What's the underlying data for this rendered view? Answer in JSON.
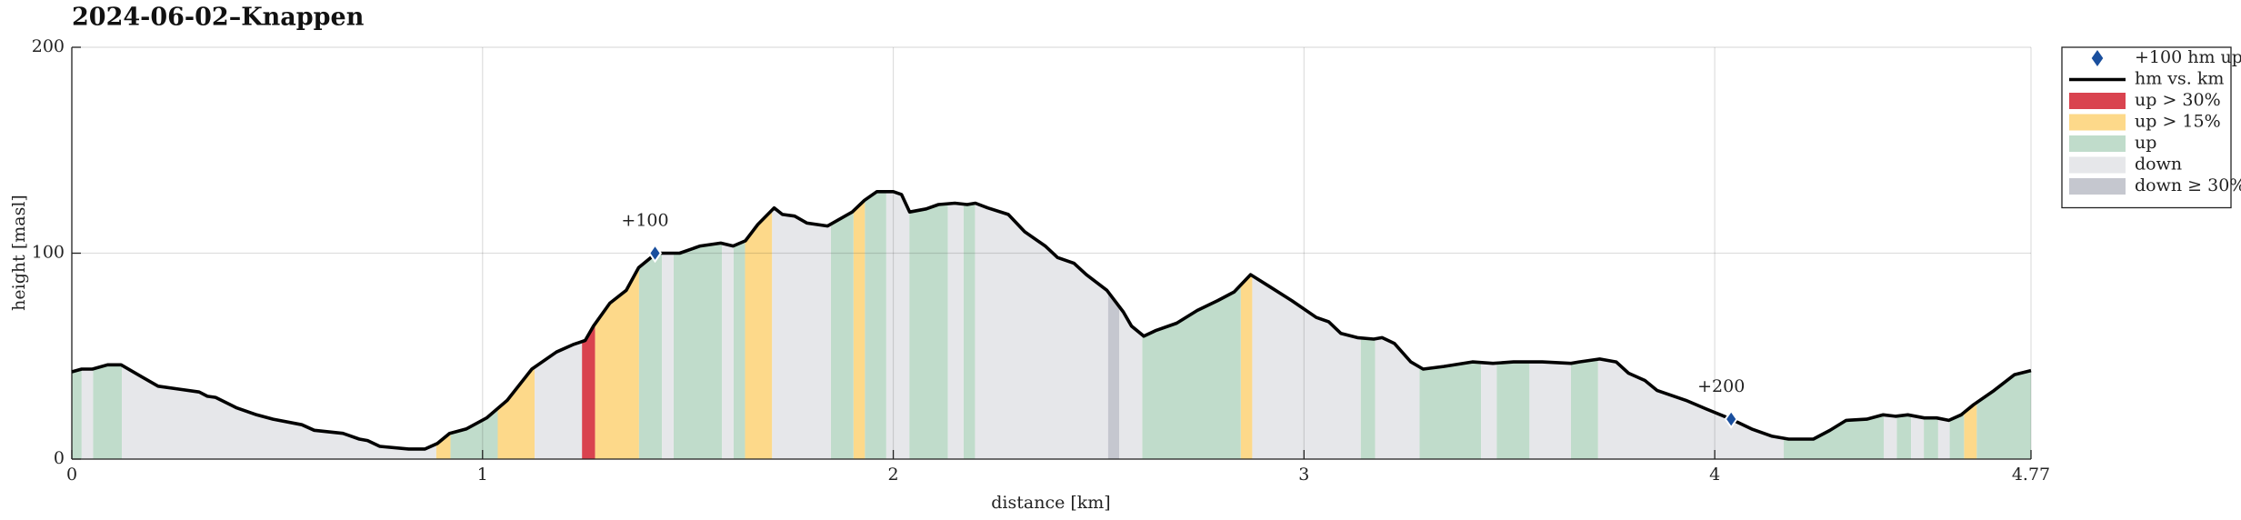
{
  "chart_data": {
    "type": "elevation-profile",
    "title": "2024-06-02–Knappen",
    "xlabel": "distance [km]",
    "ylabel": "height [masl]",
    "xlim": [
      0,
      4.77
    ],
    "ylim": [
      0,
      200
    ],
    "xticks": [
      0,
      1,
      2,
      3,
      4,
      4.77
    ],
    "yticks": [
      0,
      100,
      200
    ],
    "grid": true,
    "legend": "outside-right",
    "series": [
      {
        "name": "+100 hm up",
        "color": "#1a4f9e",
        "marker": "diamond",
        "x": [
          1.42,
          4.04
        ],
        "values": [
          100,
          19.4
        ],
        "labels": [
          "+100",
          "+200"
        ]
      },
      {
        "name": "hm vs. km",
        "color": "#000000",
        "x": [
          0,
          0.024,
          0.05,
          0.087,
          0.12,
          0.17,
          0.21,
          0.26,
          0.31,
          0.33,
          0.35,
          0.4,
          0.45,
          0.49,
          0.56,
          0.59,
          0.66,
          0.7,
          0.72,
          0.75,
          0.82,
          0.86,
          0.89,
          0.92,
          0.96,
          1.01,
          1.06,
          1.12,
          1.18,
          1.22,
          1.25,
          1.27,
          1.31,
          1.35,
          1.38,
          1.41,
          1.42,
          1.45,
          1.48,
          1.53,
          1.58,
          1.61,
          1.64,
          1.67,
          1.71,
          1.73,
          1.76,
          1.79,
          1.84,
          1.9,
          1.93,
          1.96,
          2.0,
          2.02,
          2.04,
          2.08,
          2.11,
          2.15,
          2.18,
          2.2,
          2.23,
          2.28,
          2.32,
          2.37,
          2.4,
          2.44,
          2.47,
          2.52,
          2.56,
          2.58,
          2.61,
          2.64,
          2.69,
          2.74,
          2.79,
          2.83,
          2.87,
          2.92,
          2.97,
          3.03,
          3.06,
          3.09,
          3.13,
          3.17,
          3.19,
          3.22,
          3.26,
          3.29,
          3.34,
          3.41,
          3.46,
          3.51,
          3.58,
          3.65,
          3.67,
          3.72,
          3.76,
          3.79,
          3.83,
          3.86,
          3.93,
          3.98,
          4.04,
          4.09,
          4.14,
          4.18,
          4.24,
          4.28,
          4.32,
          4.37,
          4.41,
          4.44,
          4.47,
          4.51,
          4.54,
          4.57,
          4.6,
          4.63,
          4.68,
          4.73,
          4.77
        ],
        "values": [
          42.4,
          43.7,
          43.7,
          45.8,
          45.8,
          40,
          35.4,
          34,
          32.6,
          30.5,
          30,
          25,
          21.5,
          19.4,
          16.7,
          14,
          12.5,
          9.7,
          9,
          6.2,
          4.9,
          4.9,
          7.6,
          12.5,
          14.6,
          20,
          28.5,
          43.7,
          52,
          55.6,
          57.6,
          64.6,
          75.7,
          82,
          93,
          97.9,
          100,
          100,
          100,
          103.5,
          104.9,
          103.5,
          106,
          113.9,
          122,
          118.8,
          118,
          114.6,
          113.2,
          120,
          125.7,
          129.9,
          129.9,
          128.5,
          120,
          121.5,
          123.6,
          124.3,
          123.6,
          124.3,
          122,
          118.8,
          110.4,
          103.5,
          97.9,
          95.1,
          89.6,
          82,
          71.5,
          64.6,
          59.7,
          62.5,
          66,
          72.2,
          77,
          81.2,
          89.6,
          83.3,
          77,
          68.8,
          66.7,
          61,
          59,
          58.3,
          59,
          56.2,
          47.2,
          43.7,
          45,
          47.2,
          46.5,
          47.2,
          47.2,
          46.5,
          47.2,
          48.6,
          47.2,
          41.7,
          38.2,
          33.3,
          28.5,
          24.3,
          19.4,
          14.6,
          11.1,
          9.7,
          9.7,
          13.9,
          18.8,
          19.4,
          21.5,
          20.8,
          21.5,
          20,
          20,
          18.8,
          21.5,
          26.4,
          33.3,
          41,
          43
        ]
      },
      {
        "name": "up > 30%",
        "color": "#d9434f",
        "ranges": [
          [
            1.242,
            1.274
          ]
        ]
      },
      {
        "name": "up > 15%",
        "color": "#fdd98a",
        "ranges": [
          [
            0.887,
            0.922
          ],
          [
            1.037,
            1.127
          ],
          [
            1.274,
            1.381
          ],
          [
            1.639,
            1.705
          ],
          [
            1.903,
            1.931
          ],
          [
            2.846,
            2.874
          ],
          [
            4.607,
            4.638
          ]
        ]
      },
      {
        "name": "up",
        "color": "#c0dccb",
        "ranges": [
          [
            0,
            0.024
          ],
          [
            0.052,
            0.122
          ],
          [
            0.922,
            1.037
          ],
          [
            1.381,
            1.437
          ],
          [
            1.465,
            1.583
          ],
          [
            1.611,
            1.639
          ],
          [
            1.848,
            1.903
          ],
          [
            1.931,
            1.983
          ],
          [
            2.039,
            2.133
          ],
          [
            2.171,
            2.199
          ],
          [
            2.606,
            2.846
          ],
          [
            3.138,
            3.173
          ],
          [
            3.281,
            3.431
          ],
          [
            3.469,
            3.549
          ],
          [
            3.65,
            3.716
          ],
          [
            4.168,
            4.412
          ],
          [
            4.443,
            4.478
          ],
          [
            4.509,
            4.544
          ],
          [
            4.572,
            4.607
          ],
          [
            4.638,
            4.77
          ]
        ]
      },
      {
        "name": "down",
        "color": "#e6e7ea",
        "ranges": [
          [
            0.024,
            0.052
          ],
          [
            0.122,
            0.887
          ],
          [
            1.127,
            1.242
          ],
          [
            1.437,
            1.465
          ],
          [
            1.583,
            1.611
          ],
          [
            1.705,
            1.848
          ],
          [
            1.983,
            2.039
          ],
          [
            2.133,
            2.171
          ],
          [
            2.199,
            2.523
          ],
          [
            2.55,
            2.606
          ],
          [
            2.874,
            3.138
          ],
          [
            3.173,
            3.281
          ],
          [
            3.431,
            3.469
          ],
          [
            3.549,
            3.65
          ],
          [
            3.716,
            4.168
          ],
          [
            4.412,
            4.443
          ],
          [
            4.478,
            4.509
          ],
          [
            4.544,
            4.572
          ]
        ]
      },
      {
        "name": "down ≥ 30%",
        "color": "#c5c7cf",
        "ranges": [
          [
            2.523,
            2.55
          ]
        ]
      }
    ]
  }
}
